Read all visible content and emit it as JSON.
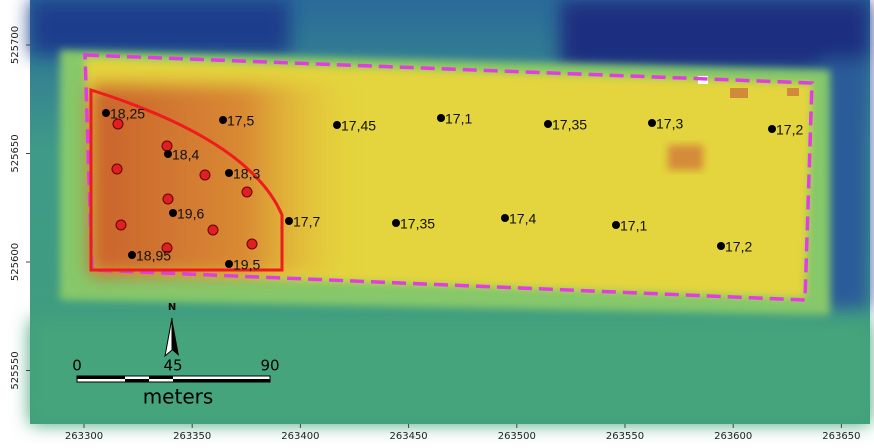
{
  "map": {
    "x_ticks": [
      "263300",
      "263350",
      "263400",
      "263450",
      "263500",
      "263550",
      "263600",
      "263650"
    ],
    "y_ticks": [
      "525700",
      "525650",
      "525600",
      "525550"
    ],
    "points": [
      {
        "label": "18,25"
      },
      {
        "label": "17,5"
      },
      {
        "label": "17,45"
      },
      {
        "label": "17,1"
      },
      {
        "label": "17,35"
      },
      {
        "label": "17,3"
      },
      {
        "label": "17,2"
      },
      {
        "label": "18,4"
      },
      {
        "label": "18,3"
      },
      {
        "label": "19,6"
      },
      {
        "label": "17,7"
      },
      {
        "label": "17,35"
      },
      {
        "label": "17,4"
      },
      {
        "label": "17,1"
      },
      {
        "label": "17,2"
      },
      {
        "label": "18,95"
      },
      {
        "label": "19,5"
      }
    ],
    "north": "N",
    "scale": {
      "labels": [
        "0",
        "45",
        "90"
      ],
      "unit": "meters"
    }
  }
}
